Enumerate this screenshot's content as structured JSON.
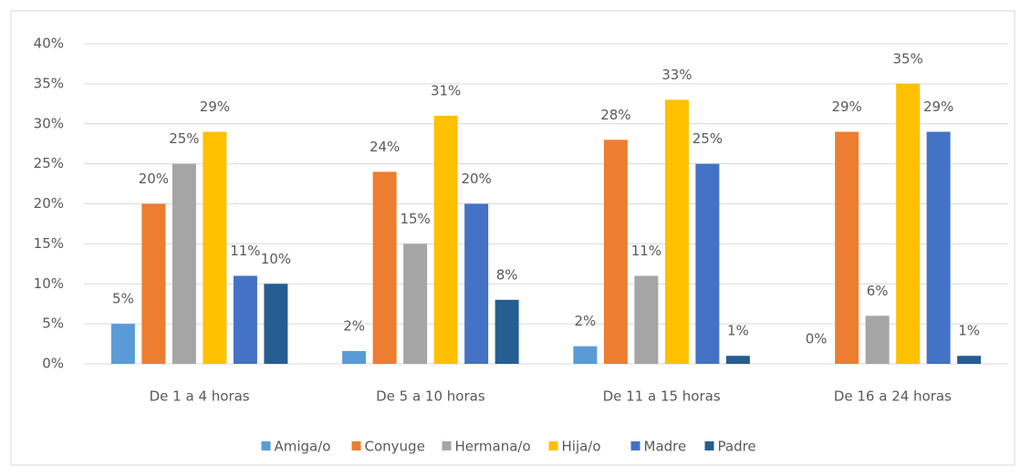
{
  "chart_data": {
    "type": "bar",
    "categories": [
      "De 1 a 4 horas",
      "De 5 a 10 horas",
      "De 11 a 15 horas",
      "De 16 a 24 horas"
    ],
    "series": [
      {
        "name": "Amiga/o",
        "color": "#5b9bd5",
        "values": [
          5,
          1.6,
          2.2,
          0
        ],
        "value_labels": [
          "5%",
          "2%",
          "2%",
          "0%"
        ]
      },
      {
        "name": "Conyuge",
        "color": "#ed7d31",
        "values": [
          20,
          24,
          28,
          29
        ],
        "value_labels": [
          "20%",
          "24%",
          "28%",
          "29%"
        ]
      },
      {
        "name": "Hermana/o",
        "color": "#a5a5a5",
        "values": [
          25,
          15,
          11,
          6
        ],
        "value_labels": [
          "25%",
          "15%",
          "11%",
          "6%"
        ]
      },
      {
        "name": "Hija/o",
        "color": "#ffc000",
        "values": [
          29,
          31,
          33,
          35
        ],
        "value_labels": [
          "29%",
          "31%",
          "33%",
          "35%"
        ]
      },
      {
        "name": "Madre",
        "color": "#4472c4",
        "values": [
          11,
          20,
          25,
          29
        ],
        "value_labels": [
          "11%",
          "20%",
          "25%",
          "29%"
        ]
      },
      {
        "name": "Padre",
        "color": "#255e91",
        "values": [
          10,
          8,
          1,
          1
        ],
        "value_labels": [
          "10%",
          "8%",
          "1%",
          "1%"
        ]
      }
    ],
    "ylim": [
      0,
      40
    ],
    "yticks": [
      {
        "value": 0,
        "label": "0%"
      },
      {
        "value": 5,
        "label": "5%"
      },
      {
        "value": 10,
        "label": "10%"
      },
      {
        "value": 15,
        "label": "15%"
      },
      {
        "value": 20,
        "label": "20%"
      },
      {
        "value": 25,
        "label": "25%"
      },
      {
        "value": 30,
        "label": "30%"
      },
      {
        "value": 35,
        "label": "35%"
      },
      {
        "value": 40,
        "label": "40%"
      }
    ],
    "grid": true,
    "legend": "bottom"
  }
}
